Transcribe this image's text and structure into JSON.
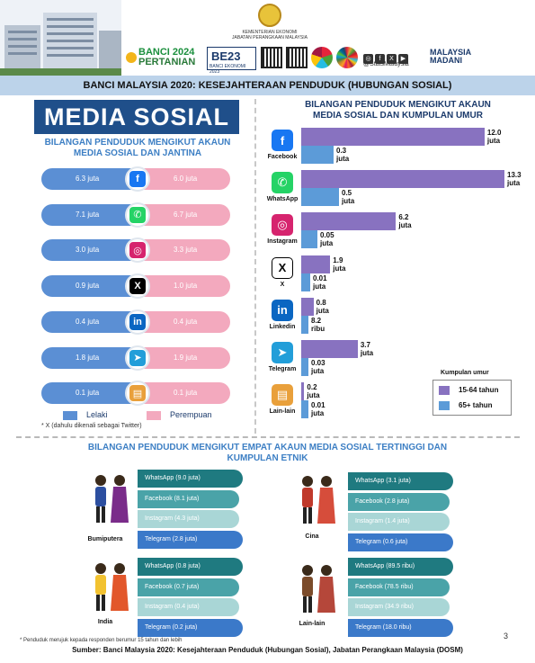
{
  "header": {
    "ministry_line1": "KEMENTERIAN EKONOMI",
    "ministry_line2": "JABATAN PERANGKAAN MALAYSIA",
    "banci_line1": "BANCI 2024",
    "banci_line2": "PERTANIAN",
    "be_logo": "BE23",
    "be_caption": "BANCI EKONOMI 2023",
    "stats_handle": "@StatsMalaysia",
    "madani_line1": "MALAYSIA",
    "madani_line2": "MADANI"
  },
  "title_bar": "BANCI MALAYSIA 2020: KESEJAHTERAAN PENDUDUK (HUBUNGAN SOSIAL)",
  "section_title": "MEDIA SOSIAL",
  "gender_chart_title_1": "BILANGAN PENDUDUK MENGIKUT AKAUN",
  "gender_chart_title_2": "MEDIA SOSIAL DAN JANTINA",
  "age_chart_title_1": "BILANGAN PENDUDUK MENGIKUT AKAUN",
  "age_chart_title_2": "MEDIA SOSIAL DAN KUMPULAN UMUR",
  "ethnic_title_1": "BILANGAN PENDUDUK MENGIKUT EMPAT AKAUN MEDIA SOSIAL TERTINGGI DAN",
  "ethnic_title_2": "KUMPULAN ETNIK",
  "gender_legend": {
    "male": "Lelaki",
    "female": "Perempuan"
  },
  "x_footnote": "* X (dahulu dikenali sebagai Twitter)",
  "age_legend": {
    "title": "Kumpulan umur",
    "a": "15-64 tahun",
    "b": "65+ tahun"
  },
  "colors": {
    "male": "#5b8fd4",
    "female": "#f3a9be",
    "age_15_64": "#8872c0",
    "age_65": "#5c9bd8",
    "dark_teal": "#1f7a80",
    "mid_teal": "#4aa3a8",
    "light_teal": "#a9d6d6",
    "blue": "#3b79c9"
  },
  "chart_data": [
    {
      "type": "bar",
      "title": "BILANGAN PENDUDUK MENGIKUT AKAUN MEDIA SOSIAL DAN JANTINA",
      "categories": [
        "Facebook",
        "WhatsApp",
        "Instagram",
        "X",
        "LinkedIn",
        "Telegram",
        "Lain-lain"
      ],
      "icons": [
        "facebook-icon",
        "whatsapp-icon",
        "instagram-icon",
        "x-icon",
        "linkedin-icon",
        "telegram-icon",
        "other-apps-icon"
      ],
      "series": [
        {
          "name": "Lelaki",
          "labels": [
            "6.3 juta",
            "7.1 juta",
            "3.0 juta",
            "0.9 juta",
            "0.4 juta",
            "1.8 juta",
            "0.1 juta"
          ],
          "values": [
            6.3,
            7.1,
            3.0,
            0.9,
            0.4,
            1.8,
            0.1
          ]
        },
        {
          "name": "Perempuan",
          "labels": [
            "6.0 juta",
            "6.7 juta",
            "3.3 juta",
            "1.0 juta",
            "0.4 juta",
            "1.9 juta",
            "0.1 juta"
          ],
          "values": [
            6.0,
            6.7,
            3.3,
            1.0,
            0.4,
            1.9,
            0.1
          ]
        }
      ]
    },
    {
      "type": "bar",
      "title": "BILANGAN PENDUDUK MENGIKUT AKAUN MEDIA SOSIAL DAN KUMPULAN UMUR",
      "categories": [
        "Facebook",
        "WhatsApp",
        "Instagram",
        "X",
        "Linkedin",
        "Telegram",
        "Lain-lain"
      ],
      "series": [
        {
          "name": "15-64 tahun",
          "values": [
            12.0,
            13.3,
            6.2,
            1.9,
            0.8,
            3.7,
            0.2
          ],
          "labels": [
            "12.0|juta",
            "13.3|juta",
            "6.2|juta",
            "1.9|juta",
            "0.8|juta",
            "3.7|juta",
            "0.2|juta"
          ]
        },
        {
          "name": "65+ tahun",
          "values": [
            0.3,
            0.5,
            0.05,
            0.01,
            0.0082,
            0.03,
            0.01
          ],
          "labels": [
            "0.3|juta",
            "0.5|juta",
            "0.05|juta",
            "0.01|juta",
            "8.2|ribu",
            "0.03|juta",
            "0.01|juta"
          ]
        }
      ],
      "legend": "bottom-right"
    },
    {
      "type": "bar",
      "title": "BILANGAN PENDUDUK MENGIKUT EMPAT AKAUN MEDIA SOSIAL TERTINGGI DAN KUMPULAN ETNIK",
      "groups": [
        {
          "name": "Bumiputera",
          "items": [
            "WhatsApp (9.0 juta)",
            "Facebook (8.1 juta)",
            "Instagram (4.3 juta)",
            "Telegram (2.8 juta)"
          ],
          "values": [
            9.0,
            8.1,
            4.3,
            2.8
          ]
        },
        {
          "name": "Cina",
          "items": [
            "WhatsApp (3.1 juta)",
            "Facebook (2.8 juta)",
            "Instagram (1.4 juta)",
            "Telegram (0.6 juta)"
          ],
          "values": [
            3.1,
            2.8,
            1.4,
            0.6
          ]
        },
        {
          "name": "India",
          "items": [
            "WhatsApp (0.8 juta)",
            "Facebook (0.7 juta)",
            "Instagram (0.4 juta)",
            "Telegram (0.2 juta)"
          ],
          "values": [
            0.8,
            0.7,
            0.4,
            0.2
          ]
        },
        {
          "name": "Lain-lain",
          "items": [
            "WhatsApp (89.5 ribu)",
            "Facebook (78.5 ribu)",
            "Instagram (34.9 ribu)",
            "Telegram (18.0 ribu)"
          ],
          "values": [
            89.5,
            78.5,
            34.9,
            18.0
          ]
        }
      ]
    }
  ],
  "footnote": "* Penduduk merujuk kepada responden berumur 15 tahun dan lebih",
  "source": "Sumber: Banci Malaysia 2020: Kesejahteraan Penduduk (Hubungan Sosial), Jabatan Perangkaan Malaysia (DOSM)",
  "page_number": "3"
}
